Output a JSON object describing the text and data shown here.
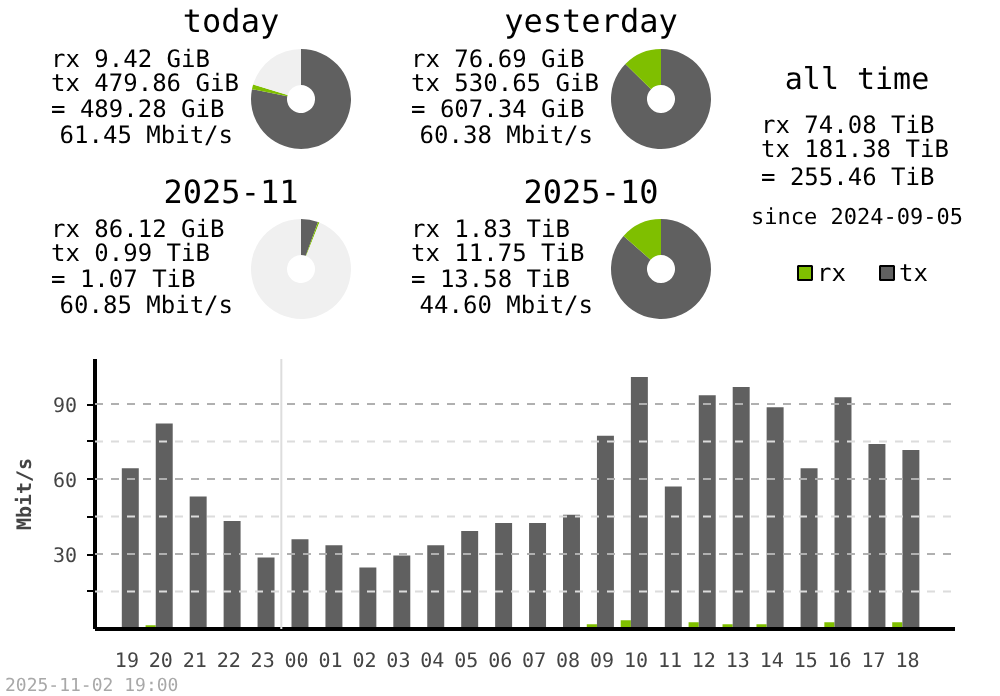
{
  "chart_data": [
    {
      "type": "donut",
      "title": "today",
      "categories": [
        null,
        null,
        null
      ],
      "values": [
        78.16,
        1.54,
        20.3
      ],
      "colors": [
        "#606060",
        "#7fbf00",
        "#f0f0f0"
      ],
      "annotations": [
        "rx 9.42 GiB",
        "tx 479.86 GiB",
        "= 489.28 GiB",
        "61.45 Mbit/s"
      ]
    },
    {
      "type": "donut",
      "title": "yesterday",
      "categories": [
        null,
        null
      ],
      "values": [
        87.37,
        12.63
      ],
      "colors": [
        "#606060",
        "#7fbf00"
      ],
      "annotations": [
        "rx 76.69 GiB",
        "tx 530.65 GiB",
        "= 607.34 GiB",
        "60.38 Mbit/s"
      ]
    },
    {
      "type": "donut",
      "title": "2025-11",
      "categories": [
        null,
        null,
        null
      ],
      "values": [
        5.52,
        0.47,
        94.01
      ],
      "colors": [
        "#606060",
        "#7fbf00",
        "#f0f0f0"
      ],
      "annotations": [
        "rx 86.12 GiB",
        "tx 0.99 TiB",
        "= 1.07 TiB",
        "60.85 Mbit/s"
      ]
    },
    {
      "type": "donut",
      "title": "2025-10",
      "categories": [
        null,
        null
      ],
      "values": [
        86.52,
        13.48
      ],
      "colors": [
        "#606060",
        "#7fbf00"
      ],
      "annotations": [
        "rx 1.83 TiB",
        "tx 11.75 TiB",
        "= 13.58 TiB",
        "44.60 Mbit/s"
      ]
    },
    {
      "type": "other",
      "title": "all time",
      "annotations": [
        "rx 74.08 TiB",
        "tx 181.38 TiB",
        "= 255.46 TiB",
        "since 2024-09-05"
      ]
    },
    {
      "type": "bar",
      "ylabel": "Mbit/s",
      "legend": "top right",
      "grid": "y",
      "ylim": [
        0,
        108
      ],
      "yticks": [
        {
          "value": 15,
          "label": null
        },
        30,
        {
          "value": 45,
          "label": null
        },
        60,
        {
          "value": 75,
          "label": null
        },
        90
      ],
      "categories": [
        "19",
        "20",
        "21",
        "22",
        "23",
        "00",
        "01",
        "02",
        "03",
        "04",
        "05",
        "06",
        "07",
        "08",
        "09",
        "10",
        "11",
        "12",
        "13",
        "14",
        "15",
        "16",
        "17",
        "18"
      ],
      "series": [
        {
          "name": "rx",
          "color": "#7fbf00",
          "values": [
            0.8,
            1.5,
            0.8,
            0.8,
            0,
            0.8,
            0,
            0,
            0,
            0,
            0,
            0.8,
            0.8,
            0.8,
            1.9,
            3.5,
            0.8,
            2.7,
            1.9,
            1.9,
            0.8,
            2.7,
            0.8,
            2.7
          ]
        },
        {
          "name": "tx",
          "color": "#606060",
          "values": [
            64.3,
            82.2,
            53,
            43.2,
            28.6,
            35.9,
            33.5,
            24.6,
            29.4,
            33.5,
            39.2,
            42.4,
            42.4,
            45.7,
            77.3,
            100.8,
            57,
            93.5,
            96.8,
            88.7,
            64.3,
            92.7,
            74,
            71.6
          ]
        }
      ],
      "ref_lines": [
        {
          "axis": "x",
          "value": "00",
          "color": "#dddddd"
        }
      ],
      "annotations": [
        "2025-11-02 19:00"
      ]
    }
  ]
}
